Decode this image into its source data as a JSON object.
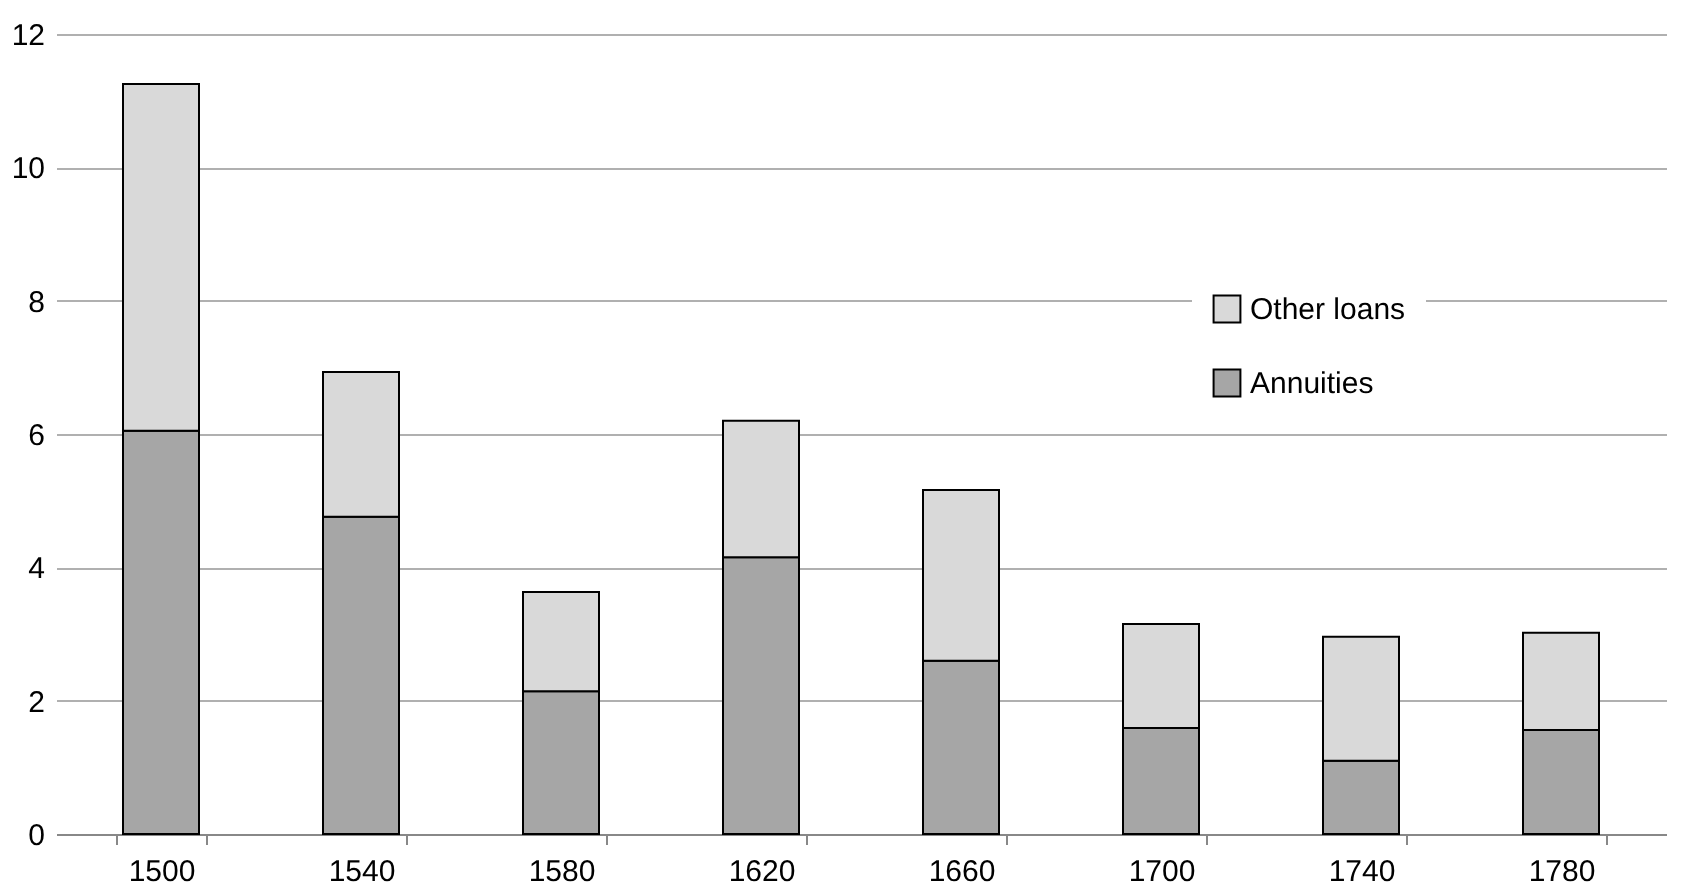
{
  "chart_data": {
    "type": "bar",
    "stacked": true,
    "categories": [
      "1500",
      "1540",
      "1580",
      "1620",
      "1660",
      "1700",
      "1740",
      "1780"
    ],
    "series": [
      {
        "name": "Annuities",
        "color": "#a6a6a6",
        "values": [
          6.05,
          4.76,
          2.14,
          4.15,
          2.6,
          1.59,
          1.1,
          1.56
        ]
      },
      {
        "name": "Other loans",
        "color": "#d9d9d9",
        "values": [
          5.2,
          2.17,
          1.49,
          2.05,
          2.56,
          1.56,
          1.86,
          1.46
        ]
      }
    ],
    "ylim": [
      0,
      12
    ],
    "yticks": [
      0,
      2,
      4,
      6,
      8,
      10,
      12
    ],
    "grid": "y",
    "legend": "top right"
  }
}
